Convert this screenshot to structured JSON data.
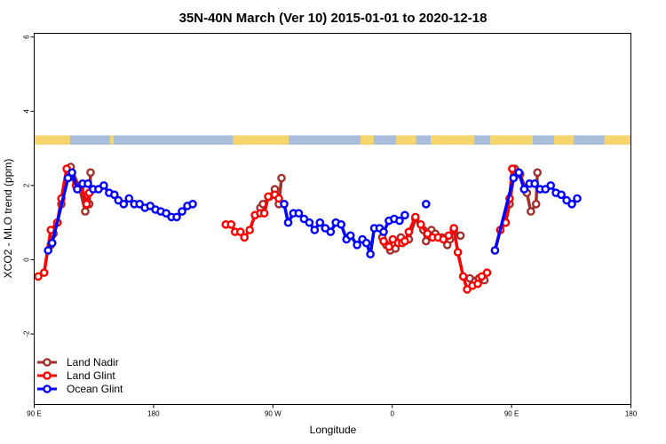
{
  "chart_data": {
    "type": "line",
    "title": "35N-40N March (Ver 10)   2015-01-01 to 2020-12-18",
    "xlabel": "Longitude",
    "ylabel": "XCO2 - MLO trend (ppm)",
    "xlim": [
      90,
      540
    ],
    "ylim": [
      -3.9,
      6.1
    ],
    "x_ticks": [
      {
        "value": 90,
        "label": "90 E"
      },
      {
        "value": 180,
        "label": "180"
      },
      {
        "value": 270,
        "label": "90 W"
      },
      {
        "value": 360,
        "label": "0"
      },
      {
        "value": 450,
        "label": "90 E"
      },
      {
        "value": 540,
        "label": "180"
      }
    ],
    "y_ticks": [
      {
        "value": -2,
        "label": "-2"
      },
      {
        "value": 0,
        "label": "0"
      },
      {
        "value": 2,
        "label": "2"
      },
      {
        "value": 4,
        "label": "4"
      },
      {
        "value": 6,
        "label": "6"
      }
    ],
    "land_strip": {
      "y_range": [
        3.1,
        3.35
      ],
      "land_color": "#f7d56e",
      "ocean_color": "#a7bddb",
      "land_spans": [
        [
          90,
          117
        ],
        [
          147,
          150
        ],
        [
          240,
          282
        ],
        [
          336,
          346
        ],
        [
          363,
          378
        ],
        [
          389,
          422
        ],
        [
          434,
          466
        ],
        [
          482,
          497
        ],
        [
          520,
          540
        ]
      ]
    },
    "legend": {
      "position": "bottom-left",
      "entries": [
        "Land Nadir",
        "Land Glint",
        "Ocean Glint"
      ]
    },
    "series": [
      {
        "name": "Land Nadir",
        "color": "#a0312f",
        "segments": [
          [
            [
              102.5,
              0.4
            ],
            [
              104.5,
              0.7
            ],
            [
              107.5,
              1.0
            ],
            [
              110.5,
              1.5
            ],
            [
              117.5,
              2.5
            ],
            [
              124.5,
              1.9
            ],
            [
              128.5,
              1.3
            ],
            [
              131.5,
              1.5
            ],
            [
              132.5,
              2.35
            ]
          ],
          [
            [
              260.5,
              1.4
            ],
            [
              262.5,
              1.5
            ],
            [
              267.5,
              1.7
            ],
            [
              271.5,
              1.9
            ],
            [
              274.5,
              1.5
            ],
            [
              276.5,
              2.2
            ]
          ],
          [
            [
              352.5,
              0.6
            ],
            [
              355.5,
              0.4
            ],
            [
              358.5,
              0.25
            ],
            [
              362.5,
              0.3
            ],
            [
              366.5,
              0.6
            ],
            [
              369.5,
              0.5
            ],
            [
              372.5,
              0.55
            ],
            [
              377.5,
              1.1
            ],
            [
              383.5,
              0.8
            ],
            [
              385.5,
              0.5
            ],
            [
              389.5,
              0.8
            ],
            [
              392.5,
              0.7
            ],
            [
              397.5,
              0.6
            ],
            [
              401.5,
              0.4
            ],
            [
              403.5,
              0.55
            ],
            [
              406.5,
              0.8
            ],
            [
              411.5,
              0.65
            ]
          ],
          [
            [
              418.5,
              -0.5
            ],
            [
              425.5,
              -0.5
            ],
            [
              429.5,
              -0.55
            ]
          ],
          [
            [
              441.5,
              0.8
            ],
            [
              445.5,
              1.0
            ],
            [
              448.5,
              1.5
            ],
            [
              452.5,
              2.45
            ],
            [
              456.5,
              2.3
            ],
            [
              461.5,
              1.8
            ],
            [
              464.5,
              1.3
            ],
            [
              468.5,
              1.5
            ],
            [
              469.5,
              2.35
            ]
          ]
        ]
      },
      {
        "name": "Land Glint",
        "color": "#ff0000",
        "segments": [
          [
            [
              93,
              -0.45
            ],
            [
              97.5,
              -0.35
            ],
            [
              102.5,
              0.8
            ],
            [
              107.5,
              1.0
            ],
            [
              110.5,
              1.65
            ],
            [
              114.5,
              2.45
            ],
            [
              121.5,
              2.0
            ],
            [
              125.5,
              2.0
            ],
            [
              129.5,
              1.5
            ],
            [
              131.5,
              1.8
            ]
          ],
          [
            [
              234.5,
              0.95
            ],
            [
              238.5,
              0.95
            ],
            [
              241.5,
              0.75
            ],
            [
              245.5,
              0.75
            ],
            [
              248.5,
              0.6
            ],
            [
              252.5,
              0.8
            ],
            [
              256.5,
              1.2
            ],
            [
              260.5,
              1.25
            ],
            [
              263.5,
              1.25
            ],
            [
              266.5,
              1.7
            ],
            [
              271.5,
              1.75
            ],
            [
              274.5,
              1.65
            ]
          ],
          [
            [
              353.5,
              0.5
            ],
            [
              357.5,
              0.35
            ],
            [
              360.5,
              0.55
            ],
            [
              364.5,
              0.45
            ],
            [
              367.5,
              0.45
            ],
            [
              369.5,
              0.5
            ],
            [
              372.5,
              0.75
            ],
            [
              377.5,
              1.15
            ],
            [
              381.5,
              0.95
            ],
            [
              386.5,
              0.7
            ],
            [
              390.5,
              0.6
            ],
            [
              394.5,
              0.6
            ],
            [
              398.5,
              0.55
            ],
            [
              402.5,
              0.65
            ],
            [
              406.5,
              0.85
            ],
            [
              409.5,
              0.2
            ],
            [
              413.5,
              -0.45
            ],
            [
              416.5,
              -0.8
            ],
            [
              420.5,
              -0.7
            ],
            [
              424.5,
              -0.65
            ],
            [
              427.5,
              -0.45
            ],
            [
              431.5,
              -0.35
            ]
          ],
          [
            [
              437.5,
              0.25
            ],
            [
              441.5,
              0.8
            ],
            [
              445.5,
              1.0
            ],
            [
              448.5,
              1.65
            ],
            [
              450.5,
              2.45
            ]
          ]
        ]
      },
      {
        "name": "Ocean Glint",
        "color": "#0000ff",
        "segments": [
          [
            [
              100.5,
              0.25
            ],
            [
              103.5,
              0.45
            ],
            [
              115.5,
              2.2
            ],
            [
              118.5,
              2.35
            ],
            [
              122.5,
              1.9
            ],
            [
              126.5,
              2.05
            ],
            [
              130.5,
              2.05
            ],
            [
              134.5,
              1.9
            ],
            [
              138.5,
              1.9
            ],
            [
              142.5,
              2.0
            ],
            [
              146.5,
              1.8
            ],
            [
              150.5,
              1.75
            ],
            [
              153.5,
              1.6
            ],
            [
              157.5,
              1.5
            ],
            [
              161.5,
              1.65
            ],
            [
              165.5,
              1.5
            ],
            [
              169.5,
              1.5
            ],
            [
              173.5,
              1.4
            ],
            [
              177.5,
              1.45
            ],
            [
              181.5,
              1.35
            ],
            [
              185.5,
              1.3
            ],
            [
              189.5,
              1.25
            ],
            [
              193.5,
              1.15
            ],
            [
              197.5,
              1.15
            ],
            [
              201.5,
              1.3
            ],
            [
              205.5,
              1.45
            ],
            [
              209.5,
              1.5
            ]
          ],
          [
            [
              278.5,
              1.5
            ],
            [
              281.5,
              1.0
            ],
            [
              285.5,
              1.25
            ],
            [
              289.5,
              1.25
            ],
            [
              293.5,
              1.1
            ],
            [
              297.5,
              1.0
            ],
            [
              301.5,
              0.8
            ],
            [
              305.5,
              1.0
            ],
            [
              309.5,
              0.85
            ],
            [
              313.5,
              0.75
            ],
            [
              317.5,
              1.0
            ],
            [
              321.5,
              0.95
            ],
            [
              325.5,
              0.55
            ],
            [
              328.5,
              0.65
            ],
            [
              333.5,
              0.4
            ],
            [
              337.5,
              0.55
            ],
            [
              340.5,
              0.45
            ],
            [
              343.5,
              0.15
            ],
            [
              346.5,
              0.85
            ],
            [
              350.5,
              0.85
            ],
            [
              353.5,
              0.75
            ],
            [
              357.5,
              1.05
            ],
            [
              361.5,
              1.1
            ],
            [
              365.5,
              1.05
            ],
            [
              369.5,
              1.2
            ]
          ],
          [
            [
              385.5,
              1.5
            ]
          ],
          [
            [
              437.5,
              0.25
            ],
            [
              451.5,
              2.2
            ],
            [
              455.5,
              2.35
            ],
            [
              459.5,
              1.9
            ],
            [
              463.5,
              2.05
            ],
            [
              467.5,
              2.05
            ],
            [
              471.5,
              1.9
            ],
            [
              475.5,
              1.9
            ],
            [
              479.5,
              2.0
            ],
            [
              483.5,
              1.8
            ],
            [
              487.5,
              1.75
            ],
            [
              491.5,
              1.6
            ],
            [
              495.5,
              1.5
            ],
            [
              499.5,
              1.65
            ]
          ]
        ]
      }
    ]
  }
}
